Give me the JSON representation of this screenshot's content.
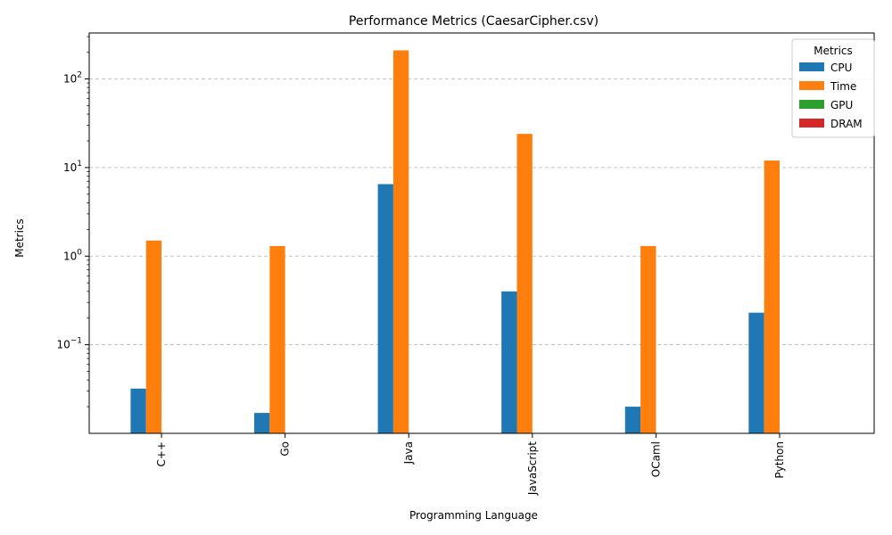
{
  "chart_data": {
    "type": "bar",
    "title": "Performance Metrics (CaesarCipher.csv)",
    "xlabel": "Programming Language",
    "ylabel": "Metrics",
    "yscale": "log",
    "ylim": [
      0.01,
      330
    ],
    "grid": "y-dashed",
    "legend_title": "Metrics",
    "legend_position": "top-right",
    "categories": [
      "C++",
      "Go",
      "Java",
      "JavaScript",
      "OCaml",
      "Python"
    ],
    "series": [
      {
        "name": "CPU",
        "color": "#1f77b4",
        "values": [
          0.032,
          0.017,
          6.5,
          0.4,
          0.02,
          0.23
        ]
      },
      {
        "name": "Time",
        "color": "#ff7f0e",
        "values": [
          1.5,
          1.3,
          210,
          24,
          1.3,
          12
        ]
      },
      {
        "name": "GPU",
        "color": "#2ca02c",
        "values": [
          0,
          0,
          0,
          0,
          0,
          0
        ]
      },
      {
        "name": "DRAM",
        "color": "#d62728",
        "values": [
          0,
          0,
          0,
          0,
          0,
          0
        ]
      }
    ],
    "yticks": [
      {
        "value": 0.1,
        "mantissa": "10",
        "exponent": "−1"
      },
      {
        "value": 1,
        "mantissa": "10",
        "exponent": "0"
      },
      {
        "value": 10,
        "mantissa": "10",
        "exponent": "1"
      },
      {
        "value": 100,
        "mantissa": "10",
        "exponent": "2"
      }
    ]
  }
}
